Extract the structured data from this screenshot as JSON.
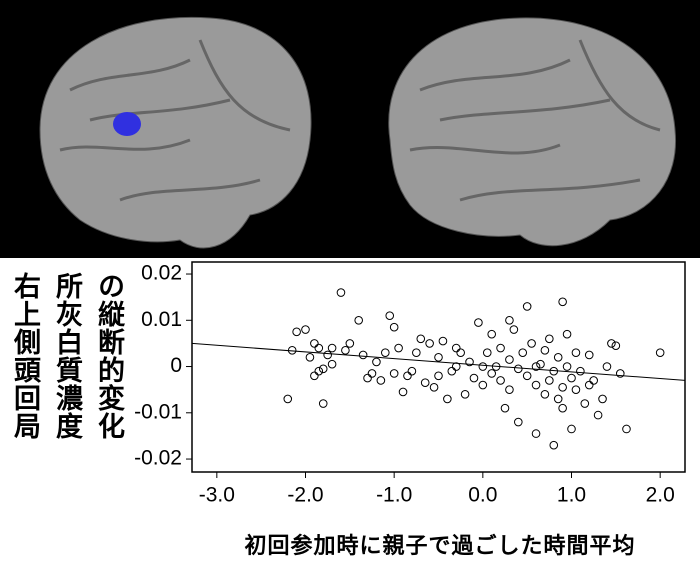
{
  "chart_data": {
    "type": "scatter",
    "y_label_lines": [
      "右上側頭回局",
      "所灰白質濃度",
      "の縦断的変化"
    ],
    "x_label": "初回参加時に親子で過ごした時間平均",
    "xlim": [
      -3.28,
      2.28
    ],
    "ylim": [
      -0.0228,
      0.0226
    ],
    "xticks": [
      {
        "value": -3,
        "label": "-3.0"
      },
      {
        "value": -2,
        "label": "-2.0"
      },
      {
        "value": -1,
        "label": "-1.0"
      },
      {
        "value": 0,
        "label": "0.0"
      },
      {
        "value": 1,
        "label": "1.0"
      },
      {
        "value": 2,
        "label": "2.0"
      }
    ],
    "yticks": [
      0.02,
      0.01,
      0,
      -0.01,
      -0.02
    ],
    "color": "#000000",
    "x": [
      -2.2,
      -2.15,
      -2.1,
      -2.0,
      -1.95,
      -1.9,
      -1.9,
      -1.85,
      -1.85,
      -1.8,
      -1.8,
      -1.75,
      -1.7,
      -1.7,
      -1.6,
      -1.55,
      -1.5,
      -1.4,
      -1.35,
      -1.3,
      -1.25,
      -1.2,
      -1.15,
      -1.1,
      -1.05,
      -1.0,
      -1.0,
      -0.95,
      -0.9,
      -0.85,
      -0.8,
      -0.75,
      -0.7,
      -0.65,
      -0.6,
      -0.55,
      -0.5,
      -0.5,
      -0.45,
      -0.4,
      -0.35,
      -0.3,
      -0.25,
      -0.2,
      -0.15,
      -0.1,
      -0.05,
      0.0,
      0.05,
      0.1,
      0.1,
      0.15,
      0.2,
      0.2,
      0.25,
      0.3,
      0.3,
      0.35,
      0.4,
      0.4,
      0.45,
      0.5,
      0.5,
      0.55,
      0.6,
      0.6,
      0.65,
      0.7,
      0.7,
      0.75,
      0.75,
      0.8,
      0.8,
      0.85,
      0.85,
      0.9,
      0.9,
      0.95,
      0.95,
      1.0,
      1.0,
      1.05,
      1.05,
      1.1,
      1.15,
      1.2,
      1.2,
      1.25,
      1.3,
      1.35,
      1.4,
      1.45,
      1.5,
      1.55,
      1.62,
      2.0,
      0.0,
      0.6,
      -0.3,
      0.9,
      0.3
    ],
    "y": [
      -0.007,
      0.0035,
      0.0075,
      0.008,
      0.002,
      0.005,
      -0.002,
      0.004,
      -0.001,
      -0.008,
      -0.0005,
      0.0025,
      0.004,
      0.0005,
      0.016,
      0.0035,
      0.005,
      0.01,
      0.0025,
      -0.0025,
      -0.0015,
      0.001,
      -0.003,
      0.003,
      0.011,
      0.0085,
      -0.0015,
      0.004,
      -0.0055,
      -0.002,
      -0.001,
      0.003,
      0.006,
      -0.0035,
      0.005,
      -0.0045,
      -0.002,
      0.002,
      0.0055,
      -0.007,
      -0.001,
      0,
      0.003,
      -0.006,
      0.001,
      -0.0025,
      0.0095,
      -0.004,
      0.003,
      -0.0015,
      0.007,
      0,
      -0.003,
      0.004,
      -0.009,
      0.0015,
      -0.005,
      0.008,
      -0.0005,
      -0.012,
      0.003,
      -0.002,
      0.013,
      0.005,
      -0.004,
      -0.0145,
      0.0005,
      -0.006,
      0.0035,
      -0.003,
      0.006,
      -0.017,
      -0.001,
      0.002,
      -0.007,
      0.014,
      -0.0045,
      0.007,
      0,
      -0.0025,
      -0.0135,
      0.003,
      -0.005,
      -0.001,
      -0.008,
      0.0025,
      -0.004,
      -0.003,
      -0.0105,
      -0.007,
      0,
      0.005,
      0.0045,
      -0.0015,
      -0.0135,
      0.003,
      0,
      0,
      0.004,
      -0.009,
      0.01
    ],
    "fit_x": [
      -3.28,
      2.28
    ],
    "fit_y": [
      0.005,
      -0.003
    ]
  }
}
